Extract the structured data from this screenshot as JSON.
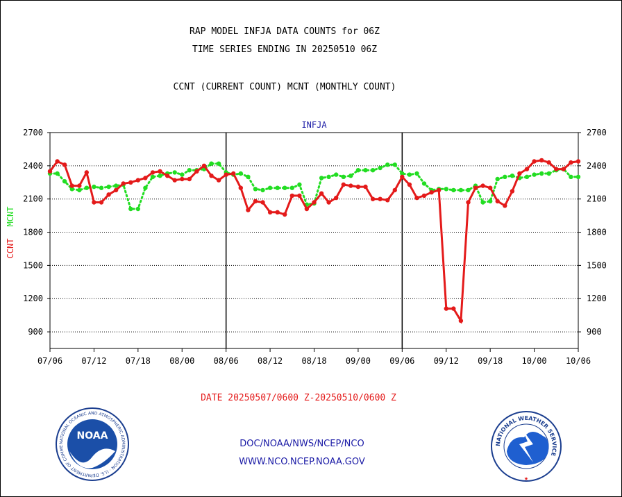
{
  "header": {
    "line1": "RAP MODEL INFJA DATA COUNTS for 06Z",
    "line2": "TIME SERIES ENDING IN 20250510 06Z",
    "line3": "CCNT (CURRENT COUNT) MCNT (MONTHLY COUNT)"
  },
  "chart_data": {
    "type": "line",
    "title": "INFJA",
    "ylabel_ccnt": "CCNT",
    "ylabel_mcnt": "MCNT",
    "ylim": [
      750,
      2700
    ],
    "yticks": [
      "900",
      "1200",
      "1500",
      "1800",
      "2100",
      "2400",
      "2700"
    ],
    "xticks": [
      "07/06",
      "07/12",
      "07/18",
      "08/00",
      "08/06",
      "08/12",
      "08/18",
      "09/00",
      "09/06",
      "09/12",
      "09/18",
      "10/00",
      "10/06"
    ],
    "x_count": 72,
    "grid": true,
    "colors": {
      "ccnt": "#e41a1a",
      "mcnt": "#22dd22"
    },
    "series": [
      {
        "name": "CCNT",
        "values": [
          2350,
          2440,
          2410,
          2220,
          2220,
          2340,
          2070,
          2070,
          2140,
          2180,
          2240,
          2250,
          2270,
          2290,
          2340,
          2350,
          2310,
          2270,
          2280,
          2280,
          2350,
          2400,
          2310,
          2270,
          2320,
          2330,
          2200,
          2000,
          2080,
          2070,
          1980,
          1980,
          1960,
          2130,
          2130,
          2010,
          2070,
          2150,
          2070,
          2110,
          2230,
          2220,
          2210,
          2210,
          2100,
          2100,
          2090,
          2180,
          2300,
          2230,
          2110,
          2130,
          2160,
          2180,
          1110,
          1110,
          1000,
          2070,
          2200,
          2220,
          2200,
          2080,
          2040,
          2170,
          2330,
          2370,
          2440,
          2450,
          2430,
          2370,
          2370,
          2430,
          2440
        ]
      },
      {
        "name": "MCNT",
        "values": [
          2330,
          2330,
          2260,
          2190,
          2180,
          2200,
          2210,
          2200,
          2210,
          2220,
          2230,
          2010,
          2010,
          2200,
          2300,
          2310,
          2330,
          2340,
          2320,
          2360,
          2360,
          2370,
          2420,
          2420,
          2340,
          2320,
          2330,
          2300,
          2190,
          2180,
          2200,
          2200,
          2200,
          2200,
          2230,
          2050,
          2060,
          2290,
          2300,
          2320,
          2300,
          2310,
          2360,
          2360,
          2360,
          2380,
          2410,
          2410,
          2330,
          2320,
          2330,
          2240,
          2180,
          2190,
          2190,
          2180,
          2180,
          2180,
          2220,
          2070,
          2080,
          2280,
          2300,
          2310,
          2290,
          2300,
          2320,
          2330,
          2330,
          2360,
          2370,
          2300,
          2300
        ]
      }
    ]
  },
  "footer": {
    "date_range": "DATE 20250507/0600 Z-20250510/0600 Z",
    "link1": "DOC/NOAA/NWS/NCEP/NCO",
    "link2": "WWW.NCO.NCEP.NOAA.GOV",
    "noaa_logo_text": "NOAA",
    "noaa_ring_text": "NATIONAL OCEANIC AND ATMOSPHERIC ADMINISTRATION · U.S. DEPARTMENT OF COMMERCE",
    "nws_ring_text": "NATIONAL WEATHER SERVICE"
  }
}
